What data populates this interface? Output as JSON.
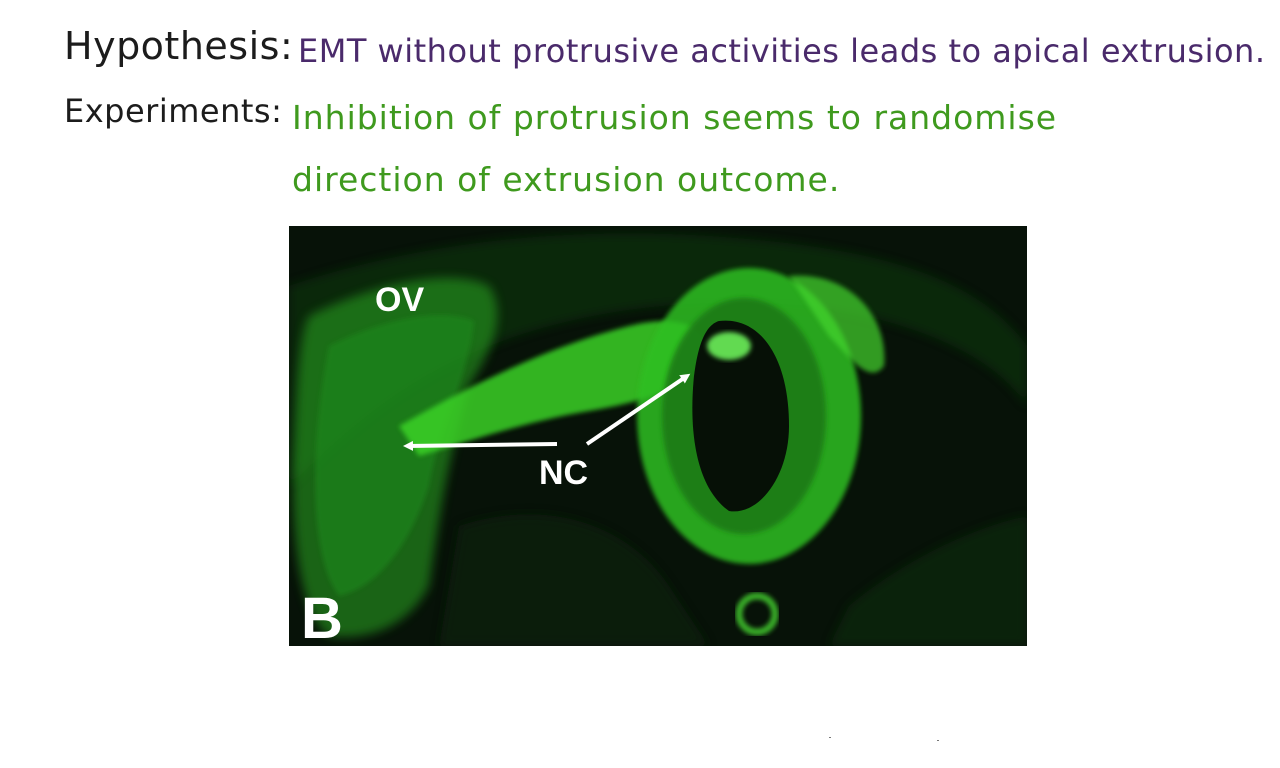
{
  "notes": {
    "hypothesis": {
      "label": "Hypothesis:",
      "text": "EMT without protrusive activities leads to apical extrusion.",
      "text_color": "#4a2a6b"
    },
    "experiments": {
      "label": "Experiments:",
      "text_line1": "Inhibition of protrusion seems to randomise",
      "text_line2": "direction of extrusion outcome.",
      "text_color": "#3f9a1e"
    }
  },
  "figure": {
    "panel_letter": "B",
    "labels": {
      "ov": "OV",
      "nc": "NC"
    },
    "fluorescence_color": "#3fd82a",
    "background_color": "#071208"
  }
}
